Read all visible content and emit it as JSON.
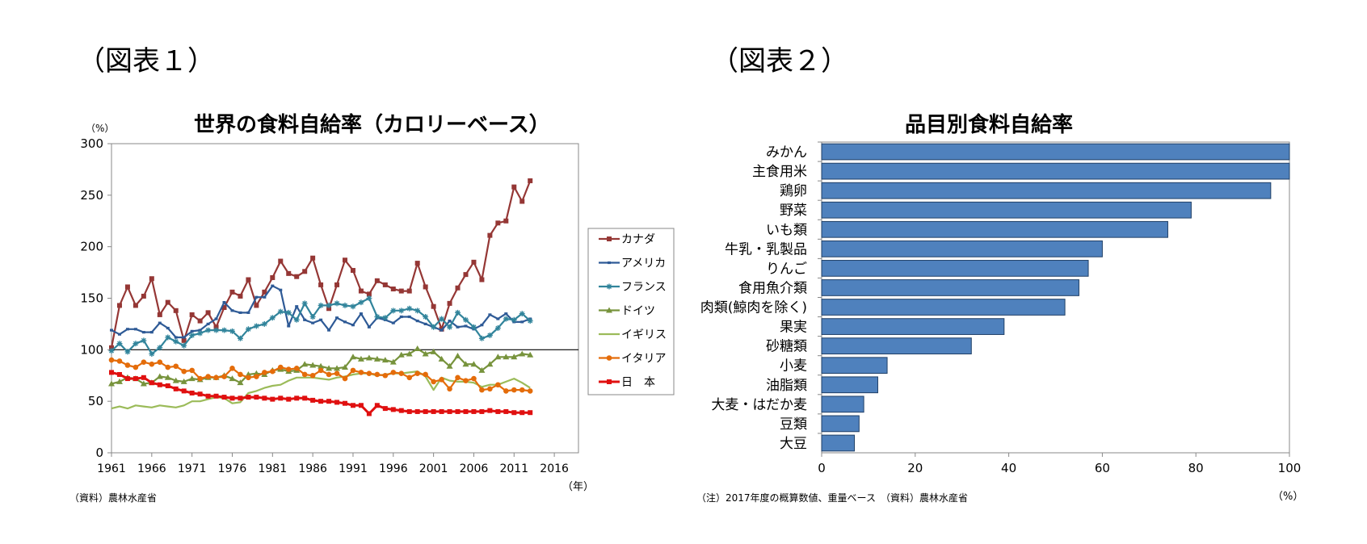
{
  "figure1": {
    "label": "（図表１）",
    "source": "（資料）農林水産省",
    "year_unit": "（年）",
    "chart_data": {
      "type": "line",
      "title": "世界の食料自給率（カロリーベース）",
      "ylabel": "（%）",
      "ylim": [
        0,
        300
      ],
      "yticks": [
        "0",
        "50",
        "100",
        "150",
        "200",
        "250",
        "300"
      ],
      "xlim": [
        1961,
        2019
      ],
      "xticks": [
        "1961",
        "1966",
        "1971",
        "1976",
        "1981",
        "1986",
        "1991",
        "1996",
        "2001",
        "2006",
        "2011",
        "2016"
      ],
      "reference_line": 100,
      "legend_position": "right",
      "x": [
        1961,
        1962,
        1963,
        1964,
        1965,
        1966,
        1967,
        1968,
        1969,
        1970,
        1971,
        1972,
        1973,
        1974,
        1975,
        1976,
        1977,
        1978,
        1979,
        1980,
        1981,
        1982,
        1983,
        1984,
        1985,
        1986,
        1987,
        1988,
        1989,
        1990,
        1991,
        1992,
        1993,
        1994,
        1995,
        1996,
        1997,
        1998,
        1999,
        2000,
        2001,
        2002,
        2003,
        2004,
        2005,
        2006,
        2007,
        2008,
        2009,
        2010,
        2011,
        2012,
        2013
      ],
      "series": [
        {
          "name": "カナダ",
          "color": "#953735",
          "marker": "square",
          "values": [
            102,
            143,
            161,
            143,
            152,
            169,
            134,
            146,
            138,
            109,
            134,
            128,
            136,
            122,
            141,
            156,
            152,
            168,
            143,
            156,
            170,
            186,
            174,
            171,
            176,
            189,
            163,
            140,
            163,
            187,
            177,
            157,
            154,
            167,
            163,
            159,
            157,
            157,
            184,
            161,
            142,
            120,
            145,
            160,
            173,
            185,
            168,
            211,
            223,
            225,
            258,
            244,
            264
          ]
        },
        {
          "name": "アメリカ",
          "color": "#2E5A96",
          "marker": "line",
          "values": [
            119,
            115,
            120,
            120,
            117,
            117,
            126,
            121,
            112,
            112,
            118,
            119,
            125,
            130,
            146,
            138,
            136,
            136,
            151,
            151,
            162,
            158,
            123,
            142,
            129,
            126,
            129,
            119,
            131,
            127,
            124,
            135,
            122,
            131,
            129,
            126,
            132,
            132,
            128,
            125,
            122,
            119,
            128,
            122,
            123,
            120,
            124,
            134,
            130,
            135,
            127,
            127,
            130
          ]
        },
        {
          "name": "フランス",
          "color": "#31849B",
          "marker": "star",
          "values": [
            99,
            106,
            98,
            106,
            109,
            96,
            102,
            112,
            108,
            104,
            114,
            116,
            119,
            119,
            119,
            118,
            111,
            120,
            123,
            125,
            131,
            137,
            136,
            129,
            145,
            132,
            143,
            143,
            145,
            143,
            142,
            146,
            150,
            132,
            131,
            138,
            138,
            140,
            138,
            132,
            122,
            130,
            122,
            136,
            129,
            122,
            111,
            114,
            121,
            130,
            129,
            135,
            128
          ]
        },
        {
          "name": "ドイツ",
          "color": "#77933C",
          "marker": "triangle",
          "values": [
            67,
            69,
            73,
            72,
            67,
            68,
            74,
            73,
            70,
            69,
            72,
            71,
            73,
            73,
            75,
            72,
            68,
            76,
            77,
            76,
            80,
            81,
            79,
            80,
            86,
            85,
            84,
            82,
            82,
            83,
            93,
            91,
            92,
            91,
            90,
            88,
            95,
            96,
            101,
            96,
            98,
            91,
            84,
            94,
            86,
            86,
            80,
            86,
            93,
            93,
            93,
            96,
            95
          ]
        },
        {
          "name": "イギリス",
          "color": "#9BBB59",
          "marker": "none",
          "values": [
            43,
            45,
            43,
            46,
            45,
            44,
            46,
            45,
            44,
            46,
            50,
            50,
            52,
            54,
            53,
            48,
            49,
            58,
            60,
            63,
            65,
            66,
            70,
            73,
            73,
            73,
            72,
            71,
            73,
            74,
            76,
            77,
            77,
            75,
            76,
            77,
            77,
            78,
            79,
            74,
            61,
            73,
            70,
            69,
            69,
            68,
            64,
            66,
            66,
            69,
            72,
            68,
            63
          ]
        },
        {
          "name": "イタリア",
          "color": "#E46C0A",
          "marker": "circle",
          "values": [
            90,
            89,
            85,
            83,
            88,
            86,
            88,
            83,
            84,
            79,
            80,
            72,
            74,
            73,
            74,
            82,
            76,
            73,
            74,
            78,
            79,
            83,
            81,
            82,
            76,
            75,
            80,
            76,
            77,
            72,
            80,
            78,
            77,
            76,
            75,
            78,
            77,
            73,
            77,
            76,
            69,
            71,
            62,
            73,
            70,
            72,
            61,
            62,
            66,
            60,
            61,
            61,
            60
          ]
        },
        {
          "name": "日　本",
          "color": "#E01010",
          "marker": "square",
          "values": [
            78,
            76,
            72,
            72,
            73,
            68,
            66,
            65,
            62,
            60,
            58,
            57,
            55,
            55,
            54,
            53,
            53,
            54,
            54,
            53,
            52,
            53,
            52,
            53,
            53,
            51,
            50,
            50,
            49,
            48,
            46,
            46,
            38,
            46,
            43,
            42,
            41,
            40,
            40,
            40,
            40,
            40,
            40,
            40,
            40,
            40,
            40,
            41,
            40,
            40,
            39,
            39,
            39
          ]
        }
      ]
    }
  },
  "figure2": {
    "label": "（図表２）",
    "note": "（注）2017年度の概算数値、重量ベース　（資料）農林水産省",
    "chart_data": {
      "type": "bar",
      "orientation": "horizontal",
      "title": "品目別食料自給率",
      "xlabel": "（%）",
      "xlim": [
        0,
        100
      ],
      "xticks": [
        "0",
        "20",
        "40",
        "60",
        "80",
        "100"
      ],
      "bar_color": "#4F81BD",
      "categories": [
        "みかん",
        "主食用米",
        "鶏卵",
        "野菜",
        "いも類",
        "牛乳・乳製品",
        "りんご",
        "食用魚介類",
        "肉類(鯨肉を除く)",
        "果実",
        "砂糖類",
        "小麦",
        "油脂類",
        "大麦・はだか麦",
        "豆類",
        "大豆"
      ],
      "values": [
        100,
        100,
        96,
        79,
        74,
        60,
        57,
        55,
        52,
        39,
        32,
        14,
        12,
        9,
        8,
        7
      ]
    }
  }
}
